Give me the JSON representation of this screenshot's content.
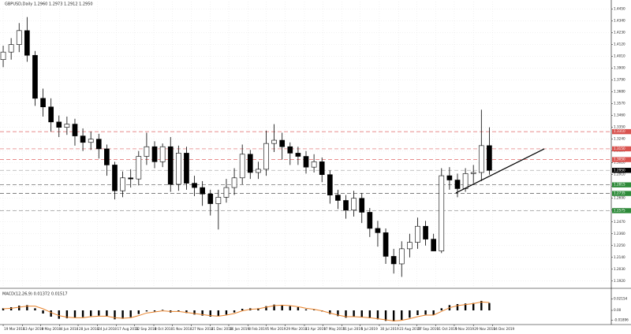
{
  "chart_data": {
    "type": "candlestick",
    "title": "GBPUSD,Daily 1.2960 1.2973 1.2912 1.2950",
    "opens": [
      1.398,
      1.405,
      1.412,
      1.425,
      1.402,
      1.362,
      1.354,
      1.34,
      1.335,
      1.338,
      1.327,
      1.321,
      1.324,
      1.315,
      1.3,
      1.276,
      1.288,
      1.287,
      1.308,
      1.317,
      1.303,
      1.317,
      1.282,
      1.311,
      1.283,
      1.279,
      1.273,
      1.264,
      1.27,
      1.279,
      1.288,
      1.31,
      1.293,
      1.296,
      1.32,
      1.323,
      1.317,
      1.311,
      1.308,
      1.298,
      1.303,
      1.291,
      1.272,
      1.267,
      1.258,
      1.269,
      1.256,
      1.241,
      1.237,
      1.215,
      1.208,
      1.222,
      1.228,
      1.243,
      1.231,
      1.22,
      1.29,
      1.286,
      1.278,
      1.292,
      1.293,
      1.318
    ],
    "highs": [
      1.411,
      1.418,
      1.432,
      1.4376,
      1.406,
      1.371,
      1.362,
      1.346,
      1.345,
      1.343,
      1.334,
      1.331,
      1.329,
      1.319,
      1.303,
      1.294,
      1.296,
      1.313,
      1.33,
      1.322,
      1.32,
      1.326,
      1.318,
      1.317,
      1.29,
      1.285,
      1.277,
      1.277,
      1.287,
      1.297,
      1.319,
      1.314,
      1.303,
      1.332,
      1.338,
      1.33,
      1.321,
      1.317,
      1.313,
      1.31,
      1.307,
      1.295,
      1.277,
      1.272,
      1.276,
      1.274,
      1.26,
      1.248,
      1.241,
      1.222,
      1.229,
      1.236,
      1.251,
      1.248,
      1.236,
      1.297,
      1.298,
      1.292,
      1.297,
      1.3,
      1.3514,
      1.335
    ],
    "lows": [
      1.391,
      1.398,
      1.405,
      1.396,
      1.355,
      1.345,
      1.331,
      1.326,
      1.328,
      1.318,
      1.313,
      1.314,
      1.306,
      1.29,
      1.268,
      1.27,
      1.279,
      1.281,
      1.3,
      1.297,
      1.298,
      1.275,
      1.276,
      1.277,
      1.271,
      1.262,
      1.253,
      1.24,
      1.265,
      1.272,
      1.282,
      1.287,
      1.287,
      1.29,
      1.312,
      1.305,
      1.3,
      1.3,
      1.292,
      1.293,
      1.284,
      1.264,
      1.259,
      1.25,
      1.252,
      1.246,
      1.233,
      1.224,
      1.208,
      1.199,
      1.1959,
      1.214,
      1.222,
      1.225,
      1.22,
      1.218,
      1.277,
      1.27,
      1.275,
      1.283,
      1.285,
      1.291
    ],
    "closes": [
      1.405,
      1.412,
      1.425,
      1.402,
      1.362,
      1.354,
      1.34,
      1.335,
      1.338,
      1.327,
      1.321,
      1.324,
      1.315,
      1.3,
      1.276,
      1.288,
      1.287,
      1.308,
      1.317,
      1.303,
      1.317,
      1.282,
      1.311,
      1.283,
      1.279,
      1.273,
      1.264,
      1.27,
      1.279,
      1.288,
      1.31,
      1.293,
      1.296,
      1.32,
      1.323,
      1.317,
      1.311,
      1.308,
      1.298,
      1.303,
      1.291,
      1.272,
      1.267,
      1.258,
      1.269,
      1.256,
      1.241,
      1.237,
      1.215,
      1.208,
      1.222,
      1.228,
      1.243,
      1.231,
      1.22,
      1.29,
      1.286,
      1.278,
      1.292,
      1.293,
      1.318,
      1.295
    ],
    "up_color": "#ffffff",
    "down_color": "#000000",
    "outline_color": "#000000",
    "xlim": [
      -0.4,
      76.3
    ],
    "ylim": [
      1.186,
      1.452
    ],
    "grid": true,
    "xticks": [
      {
        "value": 0,
        "label": "19 Mar 2018"
      },
      {
        "value": 2.4,
        "label": "13 Apr 2018"
      },
      {
        "value": 4.7,
        "label": "9 May 2018"
      },
      {
        "value": 7.1,
        "label": "4 Jun 2018"
      },
      {
        "value": 9.4,
        "label": "28 Jun 2018"
      },
      {
        "value": 11.8,
        "label": "24 Jul 2018"
      },
      {
        "value": 14.2,
        "label": "17 Aug 2018"
      },
      {
        "value": 16.5,
        "label": "12 Sep 2018"
      },
      {
        "value": 18.9,
        "label": "8 Oct 2018"
      },
      {
        "value": 21.2,
        "label": "1 Nov 2018"
      },
      {
        "value": 23.6,
        "label": "27 Nov 2018"
      },
      {
        "value": 26,
        "label": "21 Dec 2018"
      },
      {
        "value": 28.3,
        "label": "16 Jan 2019"
      },
      {
        "value": 30.7,
        "label": "8 Feb 2019"
      },
      {
        "value": 33,
        "label": "5 Mar 2019"
      },
      {
        "value": 35.4,
        "label": "29 Mar 2019"
      },
      {
        "value": 37.8,
        "label": "23 Apr 2019"
      },
      {
        "value": 40.1,
        "label": "17 May 2019"
      },
      {
        "value": 42.5,
        "label": "11 Jun 2019"
      },
      {
        "value": 44.8,
        "label": "5 Jul 2019"
      },
      {
        "value": 47.2,
        "label": "30 Jul 2019"
      },
      {
        "value": 49.6,
        "label": "23 Aug 2019"
      },
      {
        "value": 51.9,
        "label": "17 Sep 2019"
      },
      {
        "value": 54.3,
        "label": "11 Oct 2019"
      },
      {
        "value": 56.6,
        "label": "5 Nov 2019"
      },
      {
        "value": 59,
        "label": "29 Nov 2019"
      },
      {
        "value": 61.4,
        "label": "24 Dec 2019"
      }
    ],
    "yticks": [
      {
        "value": 1.445,
        "label": "1.4450"
      },
      {
        "value": 1.434,
        "label": "1.4340"
      },
      {
        "value": 1.423,
        "label": "1.4230"
      },
      {
        "value": 1.412,
        "label": "1.4120"
      },
      {
        "value": 1.401,
        "label": "1.4010"
      },
      {
        "value": 1.39,
        "label": "1.3900"
      },
      {
        "value": 1.379,
        "label": "1.3790"
      },
      {
        "value": 1.368,
        "label": "1.3680"
      },
      {
        "value": 1.357,
        "label": "1.3570"
      },
      {
        "value": 1.346,
        "label": "1.3460"
      },
      {
        "value": 1.335,
        "label": "1.3350"
      },
      {
        "value": 1.324,
        "label": "1.3240"
      },
      {
        "value": 1.313,
        "label": "1.3130"
      },
      {
        "value": 1.302,
        "label": "1.3020"
      },
      {
        "value": 1.291,
        "label": "1.2910"
      },
      {
        "value": 1.28,
        "label": "1.2800"
      },
      {
        "value": 1.269,
        "label": "1.2690"
      },
      {
        "value": 1.258,
        "label": "1.2580"
      },
      {
        "value": 1.247,
        "label": "1.2470"
      },
      {
        "value": 1.236,
        "label": "1.2360"
      },
      {
        "value": 1.225,
        "label": "1.2250"
      },
      {
        "value": 1.214,
        "label": "1.2140"
      },
      {
        "value": 1.203,
        "label": "1.2030"
      },
      {
        "value": 1.192,
        "label": "1.1920"
      }
    ],
    "levels": [
      {
        "value": 1.331,
        "label": "1.3310",
        "color": "#e06666",
        "label_color": "#d9534f"
      },
      {
        "value": 1.315,
        "label": "1.3150",
        "color": "#e06666",
        "label_color": "#d9534f"
      },
      {
        "value": 1.305,
        "label": "1.3050",
        "color": "#e06666",
        "label_color": "#d9534f"
      },
      {
        "value": 1.295,
        "label": "1.2950",
        "color": "#b0b0b0",
        "label_color": "#000000"
      },
      {
        "value": 1.2815,
        "label": "1.2815",
        "color": "#555555",
        "label_color": "#2e8b3a"
      },
      {
        "value": 1.2735,
        "label": "1.2735",
        "color": "#555555",
        "label_color": "#2e8b3a"
      },
      {
        "value": 1.2575,
        "label": "1.2575",
        "color": "#888888",
        "label_color": "#2e8b3a"
      }
    ],
    "trendline": {
      "x": [
        56.8,
        67.9
      ],
      "y": [
        1.274,
        1.315
      ],
      "color": "#000000"
    },
    "macd": {
      "label": "MACD(12,26,9) 0.01372 0.01517",
      "hist_color": "#000000",
      "signal_color": "#e8822a",
      "ylim": [
        -0.024,
        0.024
      ],
      "yticks": [
        {
          "value": 0.02154,
          "label": "0.02154"
        },
        {
          "value": 0,
          "label": "0.00"
        },
        {
          "value": -0.01896,
          "label": "-0.01896"
        }
      ],
      "histogram": [
        0.004,
        0.006,
        0.009,
        0.01,
        0.004,
        -0.006,
        -0.012,
        -0.016,
        -0.015,
        -0.014,
        -0.013,
        -0.011,
        -0.01,
        -0.012,
        -0.017,
        -0.016,
        -0.013,
        -0.007,
        -0.002,
        -0.002,
        0.001,
        -0.004,
        -0.002,
        -0.005,
        -0.008,
        -0.01,
        -0.012,
        -0.011,
        -0.008,
        -0.004,
        0.003,
        0.004,
        0.004,
        0.008,
        0.011,
        0.01,
        0.008,
        0.006,
        0.002,
        0.001,
        -0.002,
        -0.007,
        -0.011,
        -0.014,
        -0.012,
        -0.013,
        -0.015,
        -0.017,
        -0.02,
        -0.021,
        -0.018,
        -0.014,
        -0.009,
        -0.008,
        -0.009,
        0.004,
        0.01,
        0.012,
        0.013,
        0.014,
        0.018,
        0.014
      ],
      "signal": [
        0.003,
        0.004,
        0.006,
        0.008,
        0.008,
        0.003,
        -0.004,
        -0.01,
        -0.013,
        -0.014,
        -0.014,
        -0.012,
        -0.011,
        -0.011,
        -0.014,
        -0.015,
        -0.014,
        -0.01,
        -0.005,
        -0.003,
        -0.001,
        -0.002,
        -0.002,
        -0.004,
        -0.006,
        -0.008,
        -0.01,
        -0.011,
        -0.009,
        -0.006,
        -0.001,
        0.002,
        0.003,
        0.006,
        0.009,
        0.01,
        0.009,
        0.007,
        0.004,
        0.002,
        -0.001,
        -0.005,
        -0.009,
        -0.012,
        -0.012,
        -0.013,
        -0.014,
        -0.016,
        -0.018,
        -0.02,
        -0.019,
        -0.016,
        -0.012,
        -0.009,
        -0.009,
        -0.002,
        0.005,
        0.009,
        0.011,
        0.013,
        0.016,
        0.015
      ]
    }
  }
}
